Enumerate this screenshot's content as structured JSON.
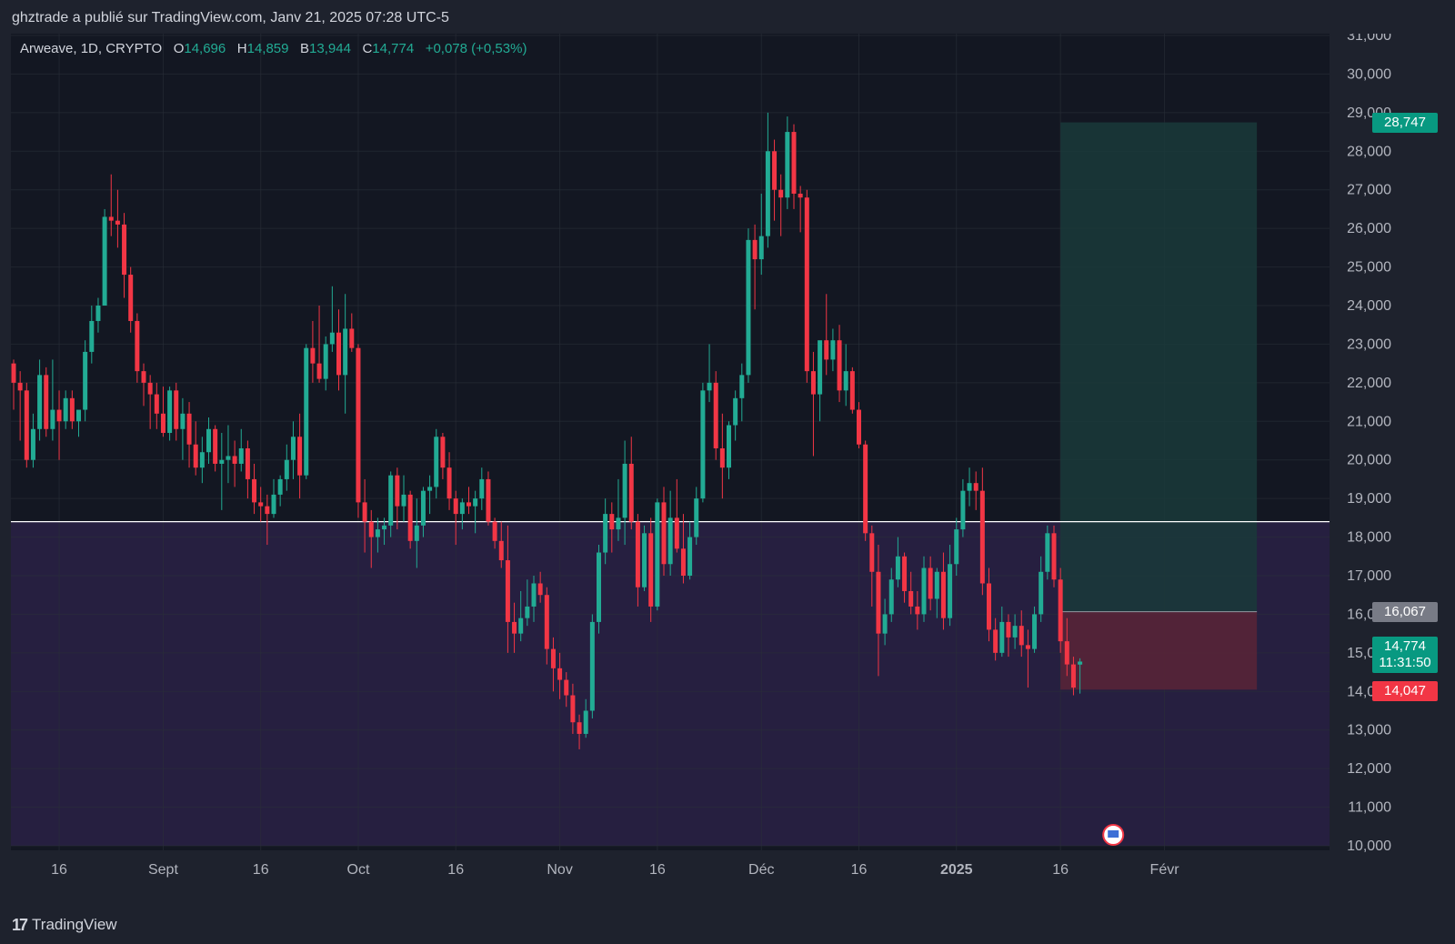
{
  "header": {
    "attribution": "ghztrade a publié sur TradingView.com, Janv 21, 2025 07:28 UTC-5"
  },
  "legend": {
    "symbol": "Arweave, 1D, CRYPTO",
    "open_label": "O",
    "open": "14,696",
    "high_label": "H",
    "high": "14,859",
    "low_label": "B",
    "low": "13,944",
    "close_label": "C",
    "close": "14,774",
    "change": "+0,078 (+0,53%)"
  },
  "footer": {
    "brand": "TradingView",
    "logo_text": "17"
  },
  "colors": {
    "up": "#22ab94",
    "down": "#f23645",
    "background": "#131722",
    "zone": "#261f40",
    "target": "#1a3a3a",
    "stop": "#5a2437"
  },
  "chart_data": {
    "type": "candlestick",
    "y_ticks": [
      "31,000",
      "30,000",
      "29,000",
      "28,000",
      "27,000",
      "26,000",
      "25,000",
      "24,000",
      "23,000",
      "22,000",
      "21,000",
      "20,000",
      "19,000",
      "18,000",
      "17,000",
      "16,000",
      "15,000",
      "14,000",
      "13,000",
      "12,000",
      "11,000",
      "10,000"
    ],
    "x_ticks": [
      "16",
      "Sept",
      "16",
      "Oct",
      "16",
      "Nov",
      "16",
      "Déc",
      "16",
      "2025",
      "16",
      "Févr"
    ],
    "x_tick_bold": [
      false,
      false,
      false,
      false,
      false,
      false,
      false,
      false,
      false,
      true,
      false,
      false
    ],
    "ylim": [
      10.0,
      31.0
    ],
    "horizontal_line": 18.4,
    "shaded_zone": [
      10.0,
      18.4
    ],
    "position": {
      "entry": 16.067,
      "target": 28.747,
      "stop": 14.047,
      "start": "2025-01-16",
      "end": "2025-02-05"
    },
    "badges": {
      "target": "28,747",
      "entry": "16,067",
      "last": "14,774",
      "countdown": "11:31:50",
      "stop": "14,047"
    },
    "candles": [
      {
        "o": 22.5,
        "h": 22.6,
        "l": 21.3,
        "c": 22.0
      },
      {
        "o": 22.0,
        "h": 22.3,
        "l": 20.5,
        "c": 21.8
      },
      {
        "o": 21.8,
        "h": 22.0,
        "l": 19.8,
        "c": 20.0
      },
      {
        "o": 20.0,
        "h": 21.2,
        "l": 19.8,
        "c": 20.8
      },
      {
        "o": 20.8,
        "h": 22.6,
        "l": 20.5,
        "c": 22.2
      },
      {
        "o": 22.2,
        "h": 22.4,
        "l": 20.6,
        "c": 20.8
      },
      {
        "o": 20.8,
        "h": 22.6,
        "l": 20.5,
        "c": 21.3
      },
      {
        "o": 21.3,
        "h": 21.8,
        "l": 20.0,
        "c": 21.0
      },
      {
        "o": 21.0,
        "h": 21.8,
        "l": 20.8,
        "c": 21.6
      },
      {
        "o": 21.6,
        "h": 21.8,
        "l": 20.8,
        "c": 21.0
      },
      {
        "o": 21.0,
        "h": 21.2,
        "l": 20.6,
        "c": 21.3
      },
      {
        "o": 21.3,
        "h": 23.1,
        "l": 21.0,
        "c": 22.8
      },
      {
        "o": 22.8,
        "h": 24.0,
        "l": 22.5,
        "c": 23.6
      },
      {
        "o": 23.6,
        "h": 24.2,
        "l": 23.3,
        "c": 24.0
      },
      {
        "o": 24.0,
        "h": 26.5,
        "l": 24.0,
        "c": 26.3
      },
      {
        "o": 26.3,
        "h": 27.4,
        "l": 25.8,
        "c": 26.2
      },
      {
        "o": 26.2,
        "h": 27.0,
        "l": 25.5,
        "c": 26.1
      },
      {
        "o": 26.1,
        "h": 26.4,
        "l": 24.2,
        "c": 24.8
      },
      {
        "o": 24.8,
        "h": 25.0,
        "l": 23.3,
        "c": 23.6
      },
      {
        "o": 23.6,
        "h": 23.8,
        "l": 22.0,
        "c": 22.3
      },
      {
        "o": 22.3,
        "h": 22.5,
        "l": 21.4,
        "c": 22.0
      },
      {
        "o": 22.0,
        "h": 22.2,
        "l": 20.8,
        "c": 21.7
      },
      {
        "o": 21.7,
        "h": 22.0,
        "l": 20.8,
        "c": 21.2
      },
      {
        "o": 21.2,
        "h": 21.9,
        "l": 20.6,
        "c": 20.7
      },
      {
        "o": 20.7,
        "h": 21.9,
        "l": 20.5,
        "c": 21.8
      },
      {
        "o": 21.8,
        "h": 22.0,
        "l": 20.5,
        "c": 20.8
      },
      {
        "o": 20.8,
        "h": 21.6,
        "l": 20.0,
        "c": 21.2
      },
      {
        "o": 21.2,
        "h": 21.5,
        "l": 19.8,
        "c": 20.4
      },
      {
        "o": 20.4,
        "h": 21.0,
        "l": 19.6,
        "c": 19.8
      },
      {
        "o": 19.8,
        "h": 20.6,
        "l": 19.4,
        "c": 20.2
      },
      {
        "o": 20.2,
        "h": 21.1,
        "l": 19.9,
        "c": 20.8
      },
      {
        "o": 20.8,
        "h": 20.9,
        "l": 19.7,
        "c": 19.9
      },
      {
        "o": 19.9,
        "h": 20.7,
        "l": 18.7,
        "c": 20.0
      },
      {
        "o": 20.0,
        "h": 20.9,
        "l": 19.4,
        "c": 20.1
      },
      {
        "o": 20.1,
        "h": 20.5,
        "l": 19.3,
        "c": 19.9
      },
      {
        "o": 19.9,
        "h": 20.8,
        "l": 19.7,
        "c": 20.3
      },
      {
        "o": 20.3,
        "h": 20.5,
        "l": 19.0,
        "c": 19.5
      },
      {
        "o": 19.5,
        "h": 19.9,
        "l": 18.6,
        "c": 18.9
      },
      {
        "o": 18.9,
        "h": 19.3,
        "l": 18.4,
        "c": 18.8
      },
      {
        "o": 18.8,
        "h": 19.1,
        "l": 17.8,
        "c": 18.6
      },
      {
        "o": 18.6,
        "h": 19.5,
        "l": 18.5,
        "c": 19.1
      },
      {
        "o": 19.1,
        "h": 19.6,
        "l": 18.8,
        "c": 19.5
      },
      {
        "o": 19.5,
        "h": 20.4,
        "l": 19.2,
        "c": 20.0
      },
      {
        "o": 20.0,
        "h": 21.0,
        "l": 19.5,
        "c": 20.6
      },
      {
        "o": 20.6,
        "h": 21.2,
        "l": 19.0,
        "c": 19.6
      },
      {
        "o": 19.6,
        "h": 23.0,
        "l": 19.5,
        "c": 22.9
      },
      {
        "o": 22.9,
        "h": 23.6,
        "l": 22.0,
        "c": 22.5
      },
      {
        "o": 22.5,
        "h": 24.0,
        "l": 22.0,
        "c": 22.1
      },
      {
        "o": 22.1,
        "h": 23.2,
        "l": 21.8,
        "c": 23.0
      },
      {
        "o": 23.0,
        "h": 24.5,
        "l": 22.8,
        "c": 23.3
      },
      {
        "o": 23.3,
        "h": 23.9,
        "l": 21.8,
        "c": 22.2
      },
      {
        "o": 22.2,
        "h": 24.3,
        "l": 21.2,
        "c": 23.4
      },
      {
        "o": 23.4,
        "h": 23.8,
        "l": 22.8,
        "c": 22.9
      },
      {
        "o": 22.9,
        "h": 23.0,
        "l": 18.5,
        "c": 18.9
      },
      {
        "o": 18.9,
        "h": 19.5,
        "l": 17.6,
        "c": 18.4
      },
      {
        "o": 18.4,
        "h": 18.7,
        "l": 17.2,
        "c": 18.0
      },
      {
        "o": 18.0,
        "h": 18.5,
        "l": 17.6,
        "c": 18.2
      },
      {
        "o": 18.2,
        "h": 18.5,
        "l": 17.8,
        "c": 18.3
      },
      {
        "o": 18.3,
        "h": 19.7,
        "l": 18.0,
        "c": 19.6
      },
      {
        "o": 19.6,
        "h": 19.8,
        "l": 18.2,
        "c": 18.8
      },
      {
        "o": 18.8,
        "h": 19.6,
        "l": 18.4,
        "c": 19.1
      },
      {
        "o": 19.1,
        "h": 19.2,
        "l": 17.7,
        "c": 17.9
      },
      {
        "o": 17.9,
        "h": 19.0,
        "l": 17.2,
        "c": 18.3
      },
      {
        "o": 18.3,
        "h": 19.3,
        "l": 18.0,
        "c": 19.2
      },
      {
        "o": 19.2,
        "h": 19.6,
        "l": 18.6,
        "c": 19.3
      },
      {
        "o": 19.3,
        "h": 20.8,
        "l": 19.0,
        "c": 20.6
      },
      {
        "o": 20.6,
        "h": 20.7,
        "l": 19.5,
        "c": 19.8
      },
      {
        "o": 19.8,
        "h": 20.2,
        "l": 18.7,
        "c": 19.0
      },
      {
        "o": 19.0,
        "h": 19.2,
        "l": 17.8,
        "c": 18.6
      },
      {
        "o": 18.6,
        "h": 19.0,
        "l": 18.2,
        "c": 18.9
      },
      {
        "o": 18.9,
        "h": 19.3,
        "l": 18.6,
        "c": 18.8
      },
      {
        "o": 18.8,
        "h": 19.2,
        "l": 18.1,
        "c": 19.0
      },
      {
        "o": 19.0,
        "h": 19.8,
        "l": 18.7,
        "c": 19.5
      },
      {
        "o": 19.5,
        "h": 19.7,
        "l": 18.3,
        "c": 18.4
      },
      {
        "o": 18.4,
        "h": 18.5,
        "l": 17.7,
        "c": 17.9
      },
      {
        "o": 17.9,
        "h": 18.4,
        "l": 17.2,
        "c": 17.4
      },
      {
        "o": 17.4,
        "h": 18.3,
        "l": 15.0,
        "c": 15.8
      },
      {
        "o": 15.8,
        "h": 16.3,
        "l": 15.0,
        "c": 15.5
      },
      {
        "o": 15.5,
        "h": 16.6,
        "l": 15.3,
        "c": 15.9
      },
      {
        "o": 15.9,
        "h": 16.9,
        "l": 15.7,
        "c": 16.2
      },
      {
        "o": 16.2,
        "h": 17.0,
        "l": 15.8,
        "c": 16.8
      },
      {
        "o": 16.8,
        "h": 17.1,
        "l": 16.3,
        "c": 16.5
      },
      {
        "o": 16.5,
        "h": 16.7,
        "l": 14.7,
        "c": 15.1
      },
      {
        "o": 15.1,
        "h": 15.4,
        "l": 14.0,
        "c": 14.6
      },
      {
        "o": 14.6,
        "h": 15.0,
        "l": 13.8,
        "c": 14.3
      },
      {
        "o": 14.3,
        "h": 14.5,
        "l": 13.6,
        "c": 13.9
      },
      {
        "o": 13.9,
        "h": 14.2,
        "l": 12.9,
        "c": 13.2
      },
      {
        "o": 13.2,
        "h": 13.4,
        "l": 12.5,
        "c": 12.9
      },
      {
        "o": 12.9,
        "h": 13.8,
        "l": 12.8,
        "c": 13.5
      },
      {
        "o": 13.5,
        "h": 16.0,
        "l": 13.3,
        "c": 15.8
      },
      {
        "o": 15.8,
        "h": 17.8,
        "l": 15.5,
        "c": 17.6
      },
      {
        "o": 17.6,
        "h": 19.0,
        "l": 17.3,
        "c": 18.6
      },
      {
        "o": 18.6,
        "h": 18.9,
        "l": 17.6,
        "c": 18.2
      },
      {
        "o": 18.2,
        "h": 19.5,
        "l": 17.9,
        "c": 18.5
      },
      {
        "o": 18.5,
        "h": 20.5,
        "l": 17.8,
        "c": 19.9
      },
      {
        "o": 19.9,
        "h": 20.6,
        "l": 18.2,
        "c": 18.4
      },
      {
        "o": 18.4,
        "h": 18.6,
        "l": 16.2,
        "c": 16.7
      },
      {
        "o": 16.7,
        "h": 18.3,
        "l": 16.6,
        "c": 18.1
      },
      {
        "o": 18.1,
        "h": 18.5,
        "l": 15.8,
        "c": 16.2
      },
      {
        "o": 16.2,
        "h": 19.0,
        "l": 16.1,
        "c": 18.9
      },
      {
        "o": 18.9,
        "h": 19.3,
        "l": 17.0,
        "c": 17.3
      },
      {
        "o": 17.3,
        "h": 19.2,
        "l": 17.0,
        "c": 18.5
      },
      {
        "o": 18.5,
        "h": 19.5,
        "l": 17.6,
        "c": 17.7
      },
      {
        "o": 17.7,
        "h": 18.6,
        "l": 16.8,
        "c": 17.0
      },
      {
        "o": 17.0,
        "h": 18.4,
        "l": 16.9,
        "c": 18.0
      },
      {
        "o": 18.0,
        "h": 19.3,
        "l": 17.8,
        "c": 19.0
      },
      {
        "o": 19.0,
        "h": 22.0,
        "l": 18.9,
        "c": 21.8
      },
      {
        "o": 21.8,
        "h": 23.0,
        "l": 21.5,
        "c": 22.0
      },
      {
        "o": 22.0,
        "h": 22.3,
        "l": 20.0,
        "c": 20.3
      },
      {
        "o": 20.3,
        "h": 21.2,
        "l": 19.0,
        "c": 19.8
      },
      {
        "o": 19.8,
        "h": 21.0,
        "l": 19.5,
        "c": 20.9
      },
      {
        "o": 20.9,
        "h": 21.8,
        "l": 20.5,
        "c": 21.6
      },
      {
        "o": 21.6,
        "h": 22.5,
        "l": 21.0,
        "c": 22.2
      },
      {
        "o": 22.2,
        "h": 26.0,
        "l": 22.0,
        "c": 25.7
      },
      {
        "o": 25.7,
        "h": 26.1,
        "l": 23.9,
        "c": 25.2
      },
      {
        "o": 25.2,
        "h": 26.9,
        "l": 24.8,
        "c": 25.8
      },
      {
        "o": 25.8,
        "h": 29.0,
        "l": 25.5,
        "c": 28.0
      },
      {
        "o": 28.0,
        "h": 28.3,
        "l": 26.2,
        "c": 27.0
      },
      {
        "o": 27.0,
        "h": 27.4,
        "l": 25.8,
        "c": 26.8
      },
      {
        "o": 26.8,
        "h": 28.9,
        "l": 26.5,
        "c": 28.5
      },
      {
        "o": 28.5,
        "h": 28.7,
        "l": 26.5,
        "c": 26.9
      },
      {
        "o": 26.9,
        "h": 27.1,
        "l": 25.9,
        "c": 26.8
      },
      {
        "o": 26.8,
        "h": 27.0,
        "l": 22.0,
        "c": 22.3
      },
      {
        "o": 22.3,
        "h": 22.8,
        "l": 20.1,
        "c": 21.7
      },
      {
        "o": 21.7,
        "h": 22.9,
        "l": 21.0,
        "c": 23.1
      },
      {
        "o": 23.1,
        "h": 24.3,
        "l": 22.2,
        "c": 22.6
      },
      {
        "o": 22.6,
        "h": 23.4,
        "l": 22.3,
        "c": 23.1
      },
      {
        "o": 23.1,
        "h": 23.5,
        "l": 21.5,
        "c": 21.8
      },
      {
        "o": 21.8,
        "h": 23.0,
        "l": 21.4,
        "c": 22.3
      },
      {
        "o": 22.3,
        "h": 22.4,
        "l": 21.2,
        "c": 21.3
      },
      {
        "o": 21.3,
        "h": 21.5,
        "l": 20.3,
        "c": 20.4
      },
      {
        "o": 20.4,
        "h": 20.5,
        "l": 17.9,
        "c": 18.1
      },
      {
        "o": 18.1,
        "h": 18.3,
        "l": 16.2,
        "c": 17.1
      },
      {
        "o": 17.1,
        "h": 17.8,
        "l": 14.4,
        "c": 15.5
      },
      {
        "o": 15.5,
        "h": 16.4,
        "l": 15.2,
        "c": 16.0
      },
      {
        "o": 16.0,
        "h": 17.2,
        "l": 15.8,
        "c": 16.9
      },
      {
        "o": 16.9,
        "h": 18.0,
        "l": 16.7,
        "c": 17.5
      },
      {
        "o": 17.5,
        "h": 17.6,
        "l": 16.3,
        "c": 16.6
      },
      {
        "o": 16.6,
        "h": 17.1,
        "l": 16.0,
        "c": 16.2
      },
      {
        "o": 16.2,
        "h": 16.6,
        "l": 15.6,
        "c": 16.0
      },
      {
        "o": 16.0,
        "h": 17.5,
        "l": 15.8,
        "c": 17.2
      },
      {
        "o": 17.2,
        "h": 17.5,
        "l": 16.1,
        "c": 16.4
      },
      {
        "o": 16.4,
        "h": 17.2,
        "l": 15.9,
        "c": 17.1
      },
      {
        "o": 17.1,
        "h": 17.6,
        "l": 15.6,
        "c": 15.9
      },
      {
        "o": 15.9,
        "h": 17.8,
        "l": 15.7,
        "c": 17.3
      },
      {
        "o": 17.3,
        "h": 18.5,
        "l": 17.0,
        "c": 18.2
      },
      {
        "o": 18.2,
        "h": 19.5,
        "l": 18.0,
        "c": 19.2
      },
      {
        "o": 19.2,
        "h": 19.8,
        "l": 18.8,
        "c": 19.4
      },
      {
        "o": 19.4,
        "h": 19.7,
        "l": 18.7,
        "c": 19.2
      },
      {
        "o": 19.2,
        "h": 19.8,
        "l": 16.5,
        "c": 16.8
      },
      {
        "o": 16.8,
        "h": 17.2,
        "l": 15.3,
        "c": 15.6
      },
      {
        "o": 15.6,
        "h": 15.9,
        "l": 14.8,
        "c": 15.0
      },
      {
        "o": 15.0,
        "h": 16.2,
        "l": 14.9,
        "c": 15.8
      },
      {
        "o": 15.8,
        "h": 16.0,
        "l": 14.9,
        "c": 15.4
      },
      {
        "o": 15.4,
        "h": 16.0,
        "l": 15.1,
        "c": 15.7
      },
      {
        "o": 15.7,
        "h": 16.1,
        "l": 14.9,
        "c": 15.2
      },
      {
        "o": 15.2,
        "h": 15.6,
        "l": 14.1,
        "c": 15.1
      },
      {
        "o": 15.1,
        "h": 16.2,
        "l": 15.0,
        "c": 16.0
      },
      {
        "o": 16.0,
        "h": 17.5,
        "l": 15.8,
        "c": 17.1
      },
      {
        "o": 17.1,
        "h": 18.3,
        "l": 16.9,
        "c": 18.1
      },
      {
        "o": 18.1,
        "h": 18.3,
        "l": 16.7,
        "c": 16.9
      },
      {
        "o": 16.9,
        "h": 17.2,
        "l": 15.0,
        "c": 15.3
      },
      {
        "o": 15.3,
        "h": 15.9,
        "l": 14.4,
        "c": 14.7
      },
      {
        "o": 14.7,
        "h": 14.9,
        "l": 13.9,
        "c": 14.1
      },
      {
        "o": 14.696,
        "h": 14.859,
        "l": 13.944,
        "c": 14.774
      }
    ]
  }
}
